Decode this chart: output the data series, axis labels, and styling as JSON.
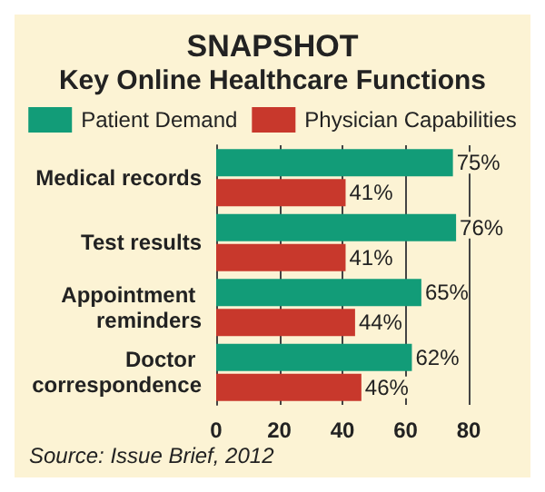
{
  "chart_data": {
    "type": "bar",
    "orientation": "horizontal",
    "title": "SNAPSHOT",
    "subtitle": "Key Online Healthcare Functions",
    "categories": [
      "Medical records",
      "Test results",
      "Appointment reminders",
      "Doctor correspondence"
    ],
    "series": [
      {
        "name": "Patient Demand",
        "color": "#129c78",
        "values": [
          75,
          76,
          65,
          62
        ],
        "value_labels": [
          "75%",
          "76%",
          "65%",
          "62%"
        ]
      },
      {
        "name": "Physician Capabilities",
        "color": "#c8382c",
        "values": [
          41,
          41,
          44,
          46
        ],
        "value_labels": [
          "41%",
          "41%",
          "44%",
          "46%"
        ]
      }
    ],
    "xlim": [
      0,
      80
    ],
    "xticks": [
      0,
      20,
      40,
      60,
      80
    ],
    "grid": "x",
    "legend": "top",
    "annotations": [
      "Source: Issue Brief, 2012"
    ]
  }
}
